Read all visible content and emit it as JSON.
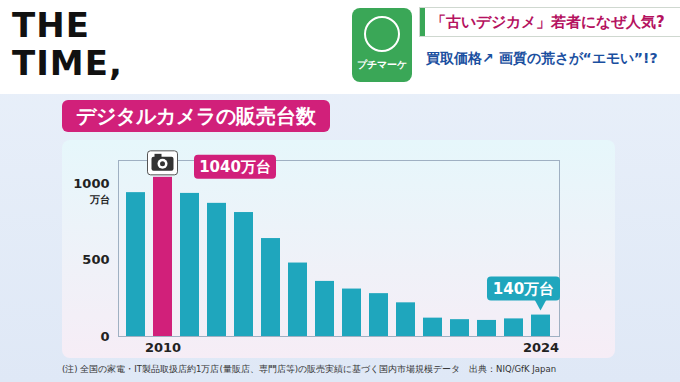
{
  "header": {
    "logo": "THE TIME,",
    "badge": "プチマーケ",
    "headline": "「古いデジカメ」若者になぜ人気?",
    "subheadline": "買取価格↗ 画質の荒さが“エモい”!?"
  },
  "chart_data": {
    "type": "bar",
    "title": "デジタルカメラの販売台数",
    "categories": [
      null,
      "2010",
      null,
      null,
      null,
      null,
      null,
      null,
      null,
      null,
      null,
      null,
      null,
      null,
      null,
      "2024"
    ],
    "values": [
      940,
      1040,
      935,
      870,
      810,
      640,
      480,
      360,
      310,
      280,
      220,
      120,
      110,
      105,
      115,
      140
    ],
    "colors": [
      "#1fa6bd",
      "#d1207a",
      "#1fa6bd",
      "#1fa6bd",
      "#1fa6bd",
      "#1fa6bd",
      "#1fa6bd",
      "#1fa6bd",
      "#1fa6bd",
      "#1fa6bd",
      "#1fa6bd",
      "#1fa6bd",
      "#1fa6bd",
      "#1fa6bd",
      "#1fa6bd",
      "#1fa6bd"
    ],
    "ylim": [
      0,
      1150
    ],
    "yticks": [
      0,
      500,
      1000
    ],
    "ylabel": "万台",
    "grid": false,
    "annotations": [
      {
        "category": "2010",
        "text": "1040万台"
      },
      {
        "category": "2024",
        "text": "140万台"
      }
    ]
  },
  "footnote": "(注) 全国の家電・IT製品取扱店約1万店(量販店、専門店等)の販売実績に基づく国内市場規模データ　出典：NIQ/GfK Japan"
}
